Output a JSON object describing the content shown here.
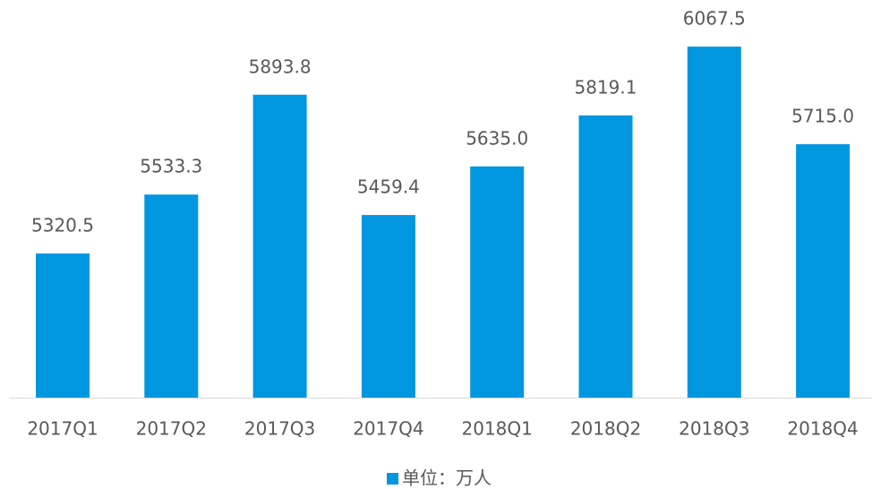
{
  "chart_data": {
    "type": "bar",
    "categories": [
      "2017Q1",
      "2017Q2",
      "2017Q3",
      "2017Q4",
      "2018Q1",
      "2018Q2",
      "2018Q3",
      "2018Q4"
    ],
    "series": [
      {
        "name": "单位：万人",
        "color": "#0097e0",
        "values": [
          5320.5,
          5533.3,
          5893.8,
          5459.4,
          5635,
          5819.1,
          6067.5,
          5715
        ],
        "value_labels": [
          "5320.5",
          "5533.3",
          "5893.8",
          "5459.4",
          "5635.0",
          "5819.1",
          "6067.5",
          "5715.0"
        ]
      }
    ],
    "ylim": [
      4800,
      6100
    ],
    "legend": "bottom"
  }
}
